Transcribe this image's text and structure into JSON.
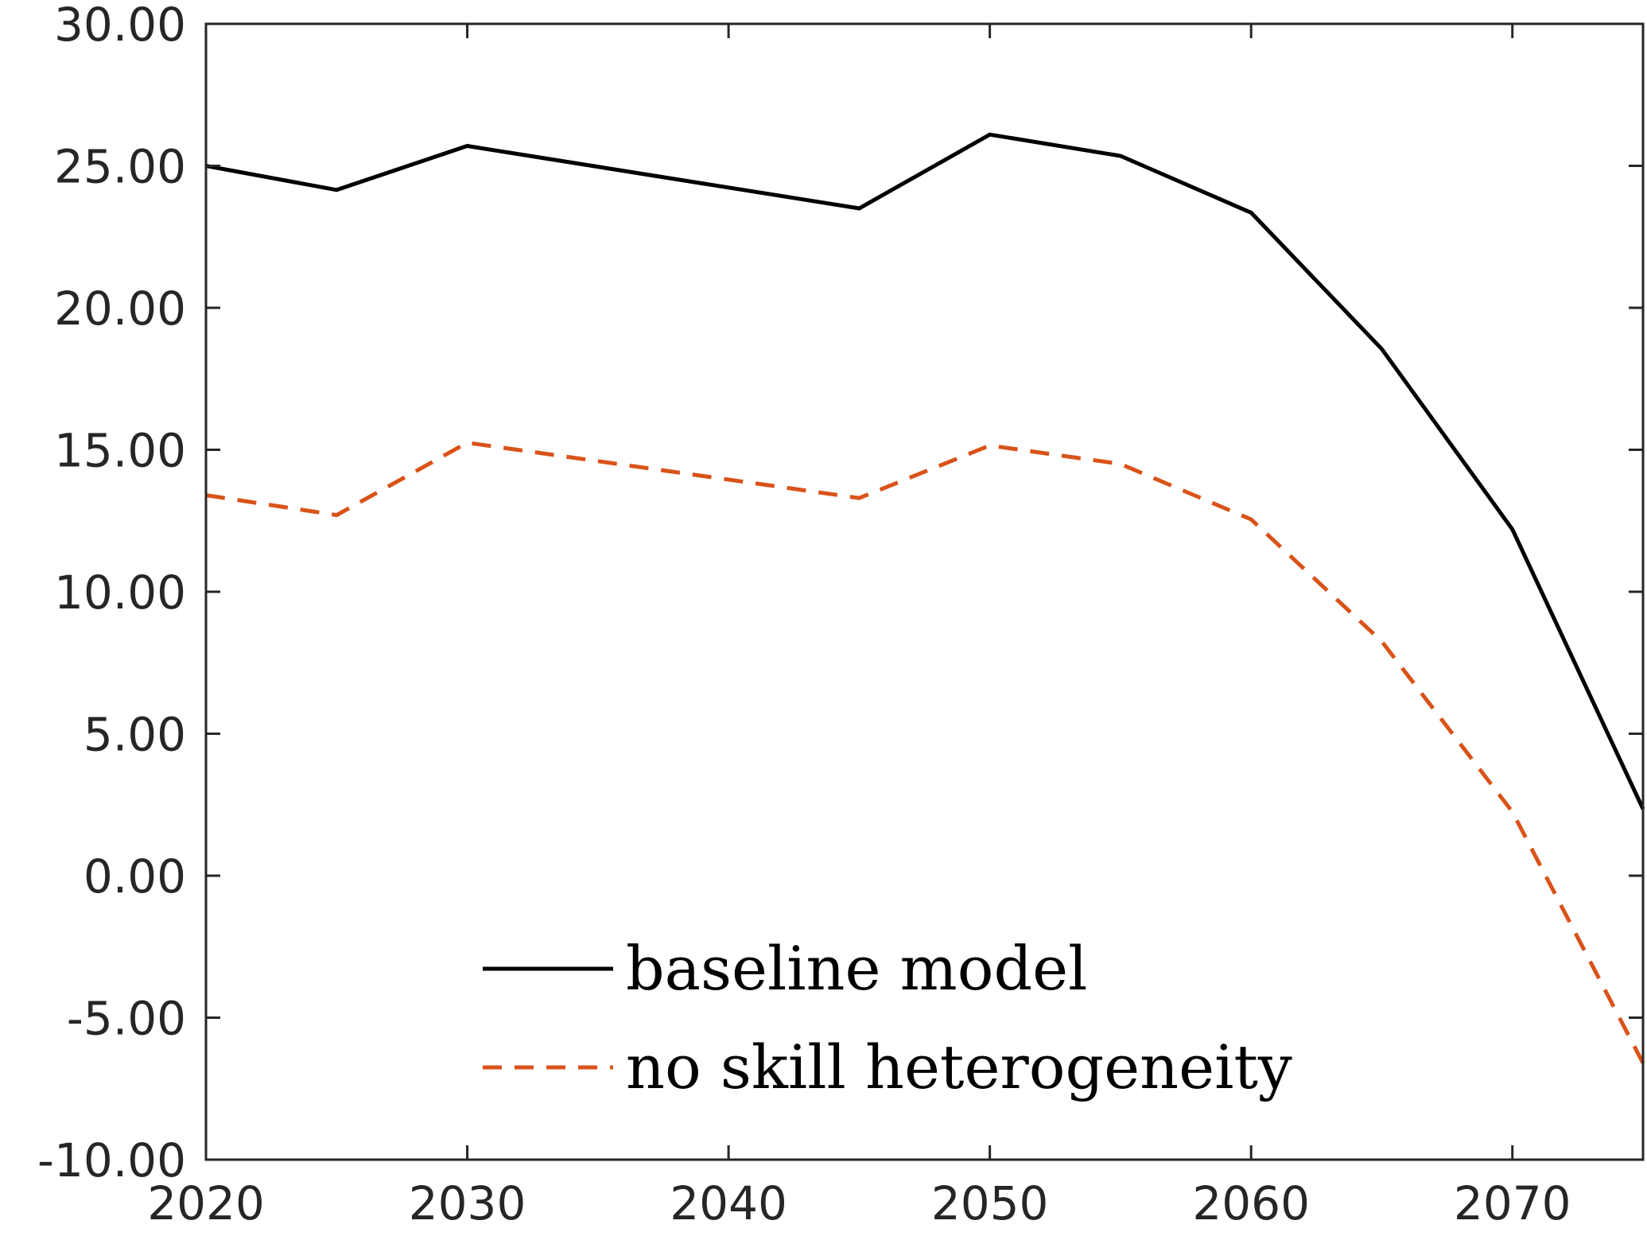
{
  "chart_data": {
    "type": "line",
    "title": "",
    "xlabel": "",
    "ylabel": "",
    "xlim": [
      2020,
      2075
    ],
    "ylim": [
      -10,
      30
    ],
    "xticks": [
      2020,
      2030,
      2040,
      2050,
      2060,
      2070
    ],
    "xtick_labels": [
      "2020",
      "2030",
      "2040",
      "2050",
      "2060",
      "2070"
    ],
    "yticks": [
      -10,
      -5,
      0,
      5,
      10,
      15,
      20,
      25,
      30
    ],
    "ytick_labels": [
      "-10.00",
      "-5.00",
      "0.00",
      "5.00",
      "10.00",
      "15.00",
      "20.00",
      "25.00",
      "30.00"
    ],
    "grid": false,
    "legend_position": "bottom-center",
    "x": [
      2020,
      2025,
      2030,
      2045,
      2050,
      2055,
      2060,
      2065,
      2070,
      2075
    ],
    "series": [
      {
        "name": "baseline model",
        "color": "#000000",
        "dash": "solid",
        "values": [
          25.0,
          24.15,
          25.7,
          23.5,
          26.1,
          25.35,
          23.35,
          18.55,
          12.2,
          2.35
        ]
      },
      {
        "name": "no skill heterogeneity",
        "color": "#D95319",
        "dash": "dashed",
        "values": [
          13.4,
          12.7,
          15.25,
          13.3,
          15.15,
          14.5,
          12.55,
          8.25,
          2.25,
          -6.6
        ]
      }
    ]
  }
}
